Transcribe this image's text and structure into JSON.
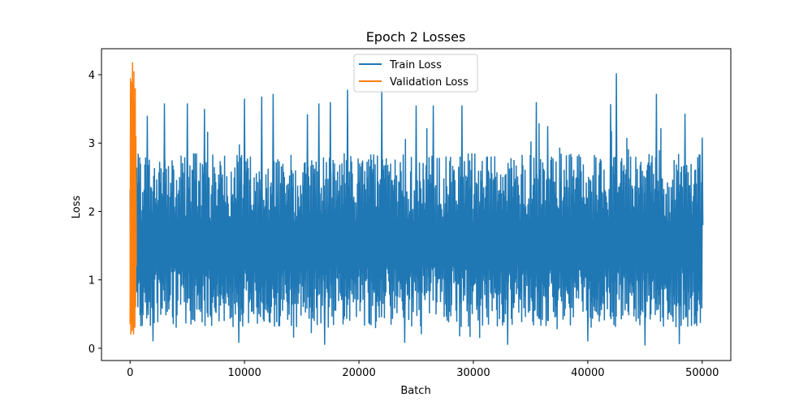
{
  "chart_data": {
    "type": "line",
    "title": "Epoch 2 Losses",
    "xlabel": "Batch",
    "ylabel": "Loss",
    "xlim": [
      -2500,
      52500
    ],
    "ylim": [
      -0.18,
      4.38
    ],
    "xticks": [
      0,
      10000,
      20000,
      30000,
      40000,
      50000
    ],
    "xtick_labels": [
      "0",
      "10000",
      "20000",
      "30000",
      "40000",
      "50000"
    ],
    "yticks": [
      0,
      1,
      2,
      3,
      4
    ],
    "ytick_labels": [
      "0",
      "1",
      "2",
      "3",
      "4"
    ],
    "legend_position": "top-center",
    "grid": false,
    "series": [
      {
        "name": "Train Loss",
        "color": "#1f77b4",
        "x_range": [
          0,
          50000
        ],
        "typical_band": [
          0.3,
          2.85
        ],
        "min": 0.03,
        "max": 4.02,
        "peaks": [
          {
            "x": 1500,
            "y": 3.4
          },
          {
            "x": 3000,
            "y": 3.58
          },
          {
            "x": 5000,
            "y": 3.58
          },
          {
            "x": 6500,
            "y": 3.5
          },
          {
            "x": 10000,
            "y": 3.65
          },
          {
            "x": 11500,
            "y": 3.68
          },
          {
            "x": 12500,
            "y": 3.72
          },
          {
            "x": 15500,
            "y": 3.42
          },
          {
            "x": 16500,
            "y": 3.58
          },
          {
            "x": 17500,
            "y": 3.6
          },
          {
            "x": 19000,
            "y": 3.78
          },
          {
            "x": 22000,
            "y": 3.78
          },
          {
            "x": 25000,
            "y": 3.55
          },
          {
            "x": 26500,
            "y": 3.55
          },
          {
            "x": 29000,
            "y": 3.55
          },
          {
            "x": 35500,
            "y": 3.6
          },
          {
            "x": 36500,
            "y": 3.25
          },
          {
            "x": 42000,
            "y": 3.57
          },
          {
            "x": 42500,
            "y": 4.02
          },
          {
            "x": 46000,
            "y": 3.72
          },
          {
            "x": 48500,
            "y": 3.43
          },
          {
            "x": 50000,
            "y": 3.08
          }
        ],
        "troughs": [
          {
            "x": 2000,
            "y": 0.1
          },
          {
            "x": 9500,
            "y": 0.08
          },
          {
            "x": 17000,
            "y": 0.05
          },
          {
            "x": 24000,
            "y": 0.08
          },
          {
            "x": 33000,
            "y": 0.05
          },
          {
            "x": 40000,
            "y": 0.1
          },
          {
            "x": 45000,
            "y": 0.04
          },
          {
            "x": 48000,
            "y": 0.06
          }
        ]
      },
      {
        "name": "Validation Loss",
        "color": "#ff7f0e",
        "x": [
          0,
          30,
          60,
          90,
          120,
          150,
          180,
          210,
          240,
          270,
          300,
          330,
          360,
          390,
          420,
          450,
          480,
          510,
          540
        ],
        "y": [
          0.35,
          3.95,
          0.2,
          3.7,
          0.4,
          3.9,
          0.25,
          4.18,
          0.3,
          3.85,
          0.2,
          4.05,
          0.5,
          3.6,
          0.3,
          3.8,
          0.6,
          3.1,
          1.2
        ]
      }
    ]
  }
}
